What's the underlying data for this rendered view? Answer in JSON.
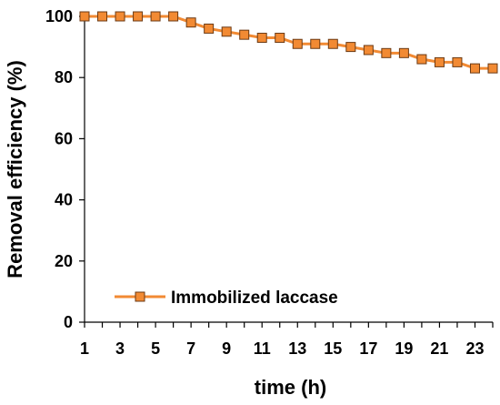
{
  "chart_data": {
    "type": "line",
    "xlabel": "time (h)",
    "ylabel": "Removal efficiency (%)",
    "xlim": [
      1,
      24
    ],
    "ylim": [
      0,
      100
    ],
    "x_ticks": [
      1,
      3,
      5,
      7,
      9,
      11,
      13,
      15,
      17,
      19,
      21,
      23
    ],
    "y_ticks": [
      0,
      20,
      40,
      60,
      80,
      100
    ],
    "grid": false,
    "legend_position": "bottom-left",
    "x": [
      1,
      2,
      3,
      4,
      5,
      6,
      7,
      8,
      9,
      10,
      11,
      12,
      13,
      14,
      15,
      16,
      17,
      18,
      19,
      20,
      21,
      22,
      23,
      24
    ],
    "series": [
      {
        "name": "Immobilized laccase",
        "values": [
          100,
          100,
          100,
          100,
          100,
          100,
          98,
          96,
          95,
          94,
          93,
          93,
          91,
          91,
          91,
          90,
          89,
          88,
          88,
          86,
          85,
          85,
          83,
          83
        ],
        "line_color": "#F28A33",
        "marker_fill": "#F28A33",
        "marker_edge": "#6B3A14",
        "marker": "square"
      }
    ]
  }
}
